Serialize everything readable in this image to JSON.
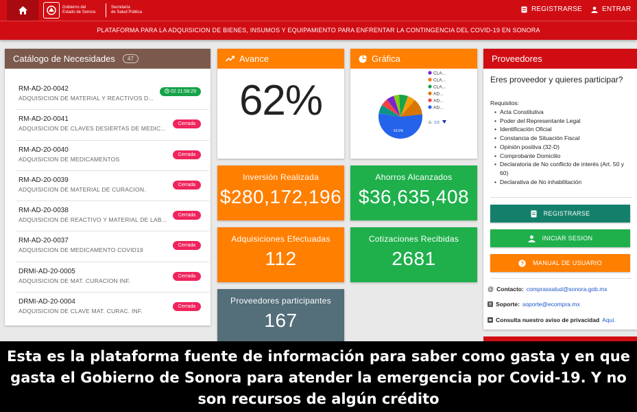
{
  "header": {
    "logo_line1": "Gobierno del",
    "logo_line2": "Estado de Sonora",
    "logo_line3": "Secretaría",
    "logo_line4": "de Salud Pública",
    "register": "REGISTRARSE",
    "login": "ENTRAR",
    "subtitle": "PLATAFORMA PARA LA ADQUISICION DE BIENES, INSUMOS Y EQUIPAMIENTO PARA ENFRENTAR LA CONTINGENCIA DEL COVID-19 EN SONORA"
  },
  "catalog": {
    "title": "Catálogo de Necesidades",
    "count": "47",
    "items": [
      {
        "code": "RM-AD-20-0042",
        "desc": "ADQUISICION DE MATERIAL Y REACTIVOS D...",
        "status": "02 21:58:29"
      },
      {
        "code": "RM-AD-20-0041",
        "desc": "ADQUISICION DE CLAVES DESIERTAS DE MEDIC...",
        "status": "Cerrada"
      },
      {
        "code": "RM-AD-20-0040",
        "desc": "ADQUISICION DE MEDICAMENTOS",
        "status": "Cerrada"
      },
      {
        "code": "RM-AD-20-0039",
        "desc": "ADQUISICION DE MATERIAL DE CURACION.",
        "status": "Cerrada"
      },
      {
        "code": "RM-AD-20-0038",
        "desc": "ADQUISICION DE REACTIVO Y MATERIAL DE LAB...",
        "status": "Cerrada"
      },
      {
        "code": "RM-AD-20-0037",
        "desc": "ADQUISICION DE MEDICAMENTO COVID19",
        "status": "Cerrada"
      },
      {
        "code": "DRMI-AD-20-0005",
        "desc": "ADQUISICION DE MAT. CURACION INF.",
        "status": "Cerrada"
      },
      {
        "code": "DRMI-AD-20-0004",
        "desc": "ADQUISICION DE CLAVE MAT. CURAC. INF.",
        "status": "Cerrada"
      }
    ]
  },
  "avance": {
    "title": "Avance",
    "value": "62%"
  },
  "grafica": {
    "title": "Gráfica",
    "legend": [
      "CLA...",
      "CLA...",
      "CLA...",
      "AD...",
      "AD...",
      "AD..."
    ],
    "legend_colors": [
      "#7e22ce",
      "#f97316",
      "#16a34a",
      "#d97706",
      "#ef4444",
      "#2563eb"
    ],
    "slice_label": "63.6%",
    "pager": "1/3"
  },
  "stats": {
    "inversion_label": "Inversión Realizada",
    "inversion_value": "$280,172,196",
    "ahorros_label": "Ahorros Alcanzados",
    "ahorros_value": "$36,635,408",
    "adq_label": "Adquisiciones Efectuadas",
    "adq_value": "112",
    "cot_label": "Cotizaciones Recibidas",
    "cot_value": "2681",
    "prov_label": "Proveedores participantes",
    "prov_value": "167"
  },
  "proveedores": {
    "title": "Proveedores",
    "question": "Eres proveedor y quieres participar?",
    "req_title": "Requisitos:",
    "requirements": [
      "Acta Constitutiva",
      "Poder del Representante Legal",
      "Identificación Oficial",
      "Constancia de Situación Fiscal",
      "Opinión positiva (32-D)",
      "Comprobante Domicilio",
      "Declaratoria de No conflicto de interés (Art. 50 y 60)",
      "Declarativa de No inhabilitación"
    ],
    "btn_register": "REGISTRARSE",
    "btn_login": "INICIAR SESION",
    "btn_manual": "MANUAL DE USUARIO",
    "contact_label": "Contacto:",
    "contact_email": "comprassalud@sonora.gob.mx",
    "support_label": "Soporte:",
    "support_email": "soporte@ecompra.mx",
    "privacy_label": "Consulta nuestro aviso de privacidad",
    "privacy_link": "Aquí."
  },
  "caption": "Esta es la plataforma fuente de información para saber como gasta y en que gasta el Gobierno de Sonora para atender la emergencia por Covid-19. Y no son recursos de algún crédito",
  "colors": {
    "brand_red": "#d10d14",
    "orange": "#ff7f00",
    "green": "#1fb04c",
    "slate": "#546e7a",
    "brown": "#7b5a4d",
    "teal": "#14806b"
  }
}
